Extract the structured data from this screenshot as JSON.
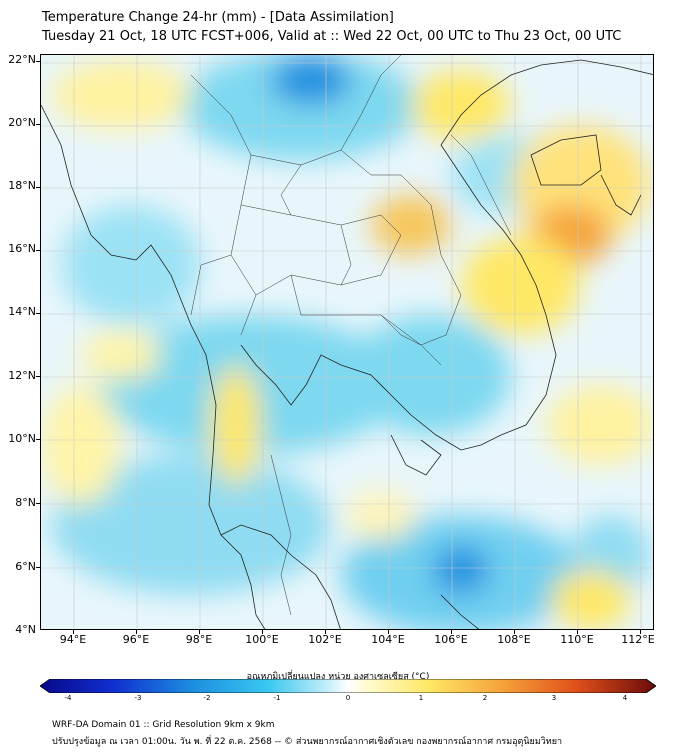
{
  "title": {
    "line1": "Temperature Change 24-hr (mm) - [Data Assimilation]",
    "line2": "Tuesday 21 Oct, 18 UTC FCST+006, Valid at :: Wed 22 Oct, 00 UTC to Thu 23 Oct, 00 UTC"
  },
  "axes": {
    "y_labels": [
      "22°N",
      "20°N",
      "18°N",
      "16°N",
      "14°N",
      "12°N",
      "10°N",
      "8°N",
      "6°N",
      "4°N"
    ],
    "x_labels": [
      "94°E",
      "96°E",
      "98°E",
      "100°E",
      "102°E",
      "104°E",
      "106°E",
      "108°E",
      "110°E",
      "112°E"
    ],
    "lat_range": [
      4,
      22.3
    ],
    "lon_range": [
      93,
      112.5
    ]
  },
  "colorbar": {
    "label": "อุณหภูมิเปลี่ยนแปลง หน่วย องศาเซลเซียส (°C)",
    "ticks": [
      "-4",
      "-3",
      "-2",
      "-1",
      "0",
      "1",
      "2",
      "3",
      "4"
    ],
    "range": [
      -4,
      4
    ]
  },
  "footer": {
    "line1": "WRF-DA Domain 01 :: Grid Resolution 9km x 9km",
    "line2": "ปรับปรุงข้อมูล ณ เวลา 01:00น. วัน พ. ที่ 22 ต.ค. 2568 -- © ส่วนพยากรณ์อากาศเชิงตัวเลข กองพยากรณ์อากาศ กรมอุตุนิยมวิทยา"
  },
  "colors": {
    "warm": "#ffe866",
    "hot": "#f5a23a",
    "cool": "#7dd8f0",
    "cold": "#1e8fe0",
    "neutral": "#e8f6fb"
  }
}
